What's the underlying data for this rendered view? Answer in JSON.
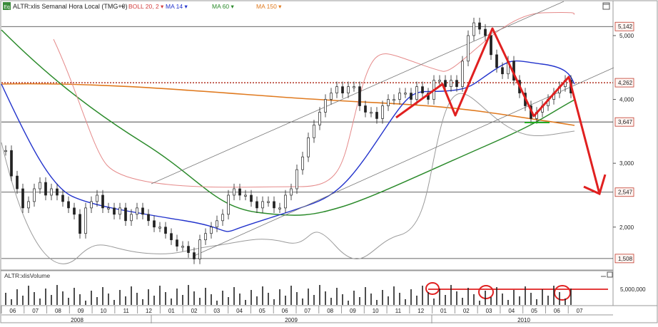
{
  "header": {
    "logo": "Eq",
    "symbol_label": "ALTR:xlis Semanal Hora Local (TMG+0)",
    "legend": [
      {
        "label": "BOLL 20, 2",
        "color": "#d23c3c"
      },
      {
        "label": "MA 14",
        "color": "#2233cc"
      },
      {
        "label": "MA 60",
        "color": "#2a8a2a"
      },
      {
        "label": "MA 150",
        "color": "#e07a1f"
      }
    ]
  },
  "volume_panel": {
    "title": "ALTR:xlisVolume",
    "axis_label": "5,000,000"
  },
  "price_axis": {
    "ticks": [
      "5,000",
      "4,000",
      "3,000",
      "2,000"
    ],
    "flags": [
      {
        "label": "5,142",
        "color": "#c0392b"
      },
      {
        "label": "4,262",
        "color": "#c0392b"
      },
      {
        "label": "3,647",
        "color": "#c0392b"
      },
      {
        "label": "2,547",
        "color": "#c0392b"
      },
      {
        "label": "1,508",
        "color": "#c0392b"
      }
    ]
  },
  "time_axis": {
    "months": [
      "06",
      "07",
      "08",
      "09",
      "10",
      "11",
      "12",
      "01",
      "02",
      "03",
      "04",
      "05",
      "06",
      "07",
      "08",
      "09",
      "10",
      "11",
      "12",
      "01",
      "02",
      "03",
      "04",
      "05",
      "06",
      "07"
    ],
    "years": [
      "2008",
      "2009",
      "2010"
    ]
  },
  "chart_data": {
    "type": "candlestick",
    "price_levels": [
      5.142,
      4.262,
      3.647,
      2.547,
      1.508
    ],
    "ylim": [
      1.3,
      5.5
    ],
    "weekly_closes": [
      3.2,
      2.8,
      2.6,
      2.3,
      2.4,
      2.6,
      2.7,
      2.5,
      2.6,
      2.5,
      2.4,
      2.3,
      2.2,
      1.9,
      2.3,
      2.4,
      2.5,
      2.3,
      2.3,
      2.2,
      2.3,
      2.1,
      2.2,
      2.3,
      2.2,
      2.1,
      2.0,
      2.0,
      1.9,
      1.8,
      1.7,
      1.7,
      1.6,
      1.5,
      1.8,
      1.9,
      2.0,
      2.1,
      2.2,
      2.5,
      2.6,
      2.5,
      2.5,
      2.4,
      2.3,
      2.4,
      2.4,
      2.3,
      2.3,
      2.5,
      2.6,
      2.9,
      3.1,
      3.4,
      3.6,
      3.8,
      4.0,
      4.1,
      4.2,
      4.1,
      4.2,
      4.2,
      3.9,
      3.8,
      3.8,
      3.7,
      3.9,
      4.0,
      4.0,
      4.1,
      4.1,
      4.0,
      4.2,
      4.1,
      4.0,
      4.3,
      4.3,
      4.2,
      4.3,
      4.2,
      4.6,
      5.0,
      5.2,
      5.1,
      5.0,
      4.7,
      4.5,
      4.4,
      4.6,
      4.3,
      4.1,
      3.9,
      3.7,
      3.8,
      3.9,
      4.0,
      4.1,
      4.2,
      4.3,
      4.1
    ],
    "annotations": {
      "head_and_shoulders": true,
      "projected_target": 2.547,
      "volume_reference": 5000000
    }
  }
}
